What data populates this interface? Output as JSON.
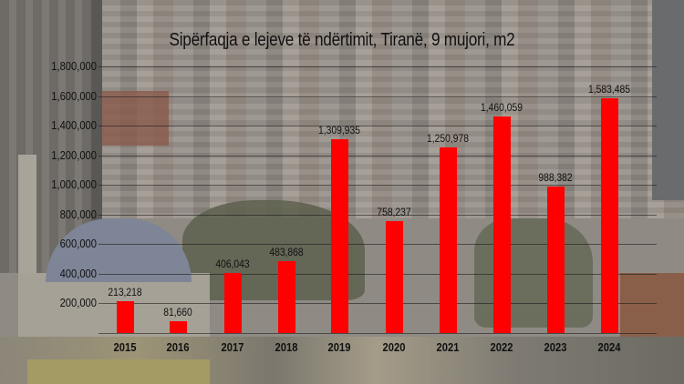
{
  "chart_data": {
    "type": "bar",
    "title": "Sipërfaqja e lejeve të ndërtimit, Tiranë, 9 mujori, m2",
    "xlabel": "",
    "ylabel": "",
    "categories": [
      "2015",
      "2016",
      "2017",
      "2018",
      "2019",
      "2020",
      "2021",
      "2022",
      "2023",
      "2024"
    ],
    "values": [
      213218,
      81660,
      406043,
      483868,
      1309935,
      758237,
      1250978,
      1460059,
      988382,
      1583485
    ],
    "value_labels": [
      "213,218",
      "81,660",
      "406,043",
      "483,868",
      "1,309,935",
      "758,237",
      "1,250,978",
      "1,460,059",
      "988,382",
      "1,583,485"
    ],
    "ylim": [
      0,
      1800000
    ],
    "yticks": [
      0,
      200000,
      400000,
      600000,
      800000,
      1000000,
      1200000,
      1400000,
      1600000,
      1800000
    ],
    "ytick_labels": [
      "200,000",
      "400,000",
      "600,000",
      "800,000",
      "1,000,000",
      "1,200,000",
      "1,400,000",
      "1,600,000",
      "1,800,000"
    ],
    "grid": true,
    "legend": "none",
    "bar_color": "#ff0000"
  }
}
